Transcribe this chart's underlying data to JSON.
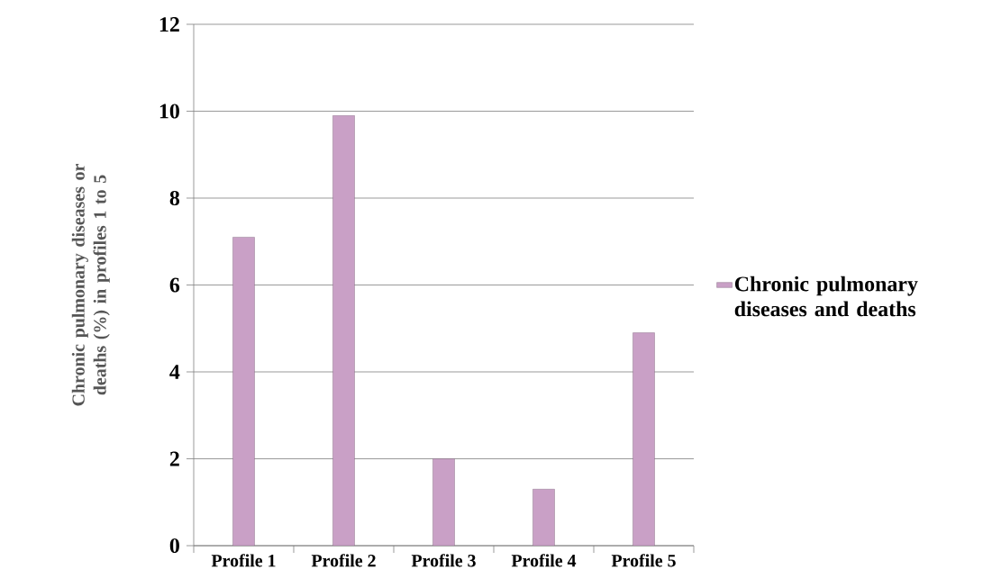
{
  "chart_data": {
    "type": "bar",
    "ylabel": "Chronic pulmonary  diseases or deaths (%) in profiles 1 to 5",
    "categories": [
      "Profile 1",
      "Profile 2",
      "Profile 3",
      "Profile 4",
      "Profile 5"
    ],
    "series": [
      {
        "name": "Chronic pulmonary diseases and deaths",
        "color": "#c9a0c6",
        "values": [
          7.1,
          9.9,
          2.0,
          1.3,
          4.9
        ]
      }
    ],
    "ylim": [
      0,
      12
    ],
    "yticks": [
      0,
      2,
      4,
      6,
      8,
      10,
      12
    ],
    "grid": "y",
    "legend": "right"
  }
}
